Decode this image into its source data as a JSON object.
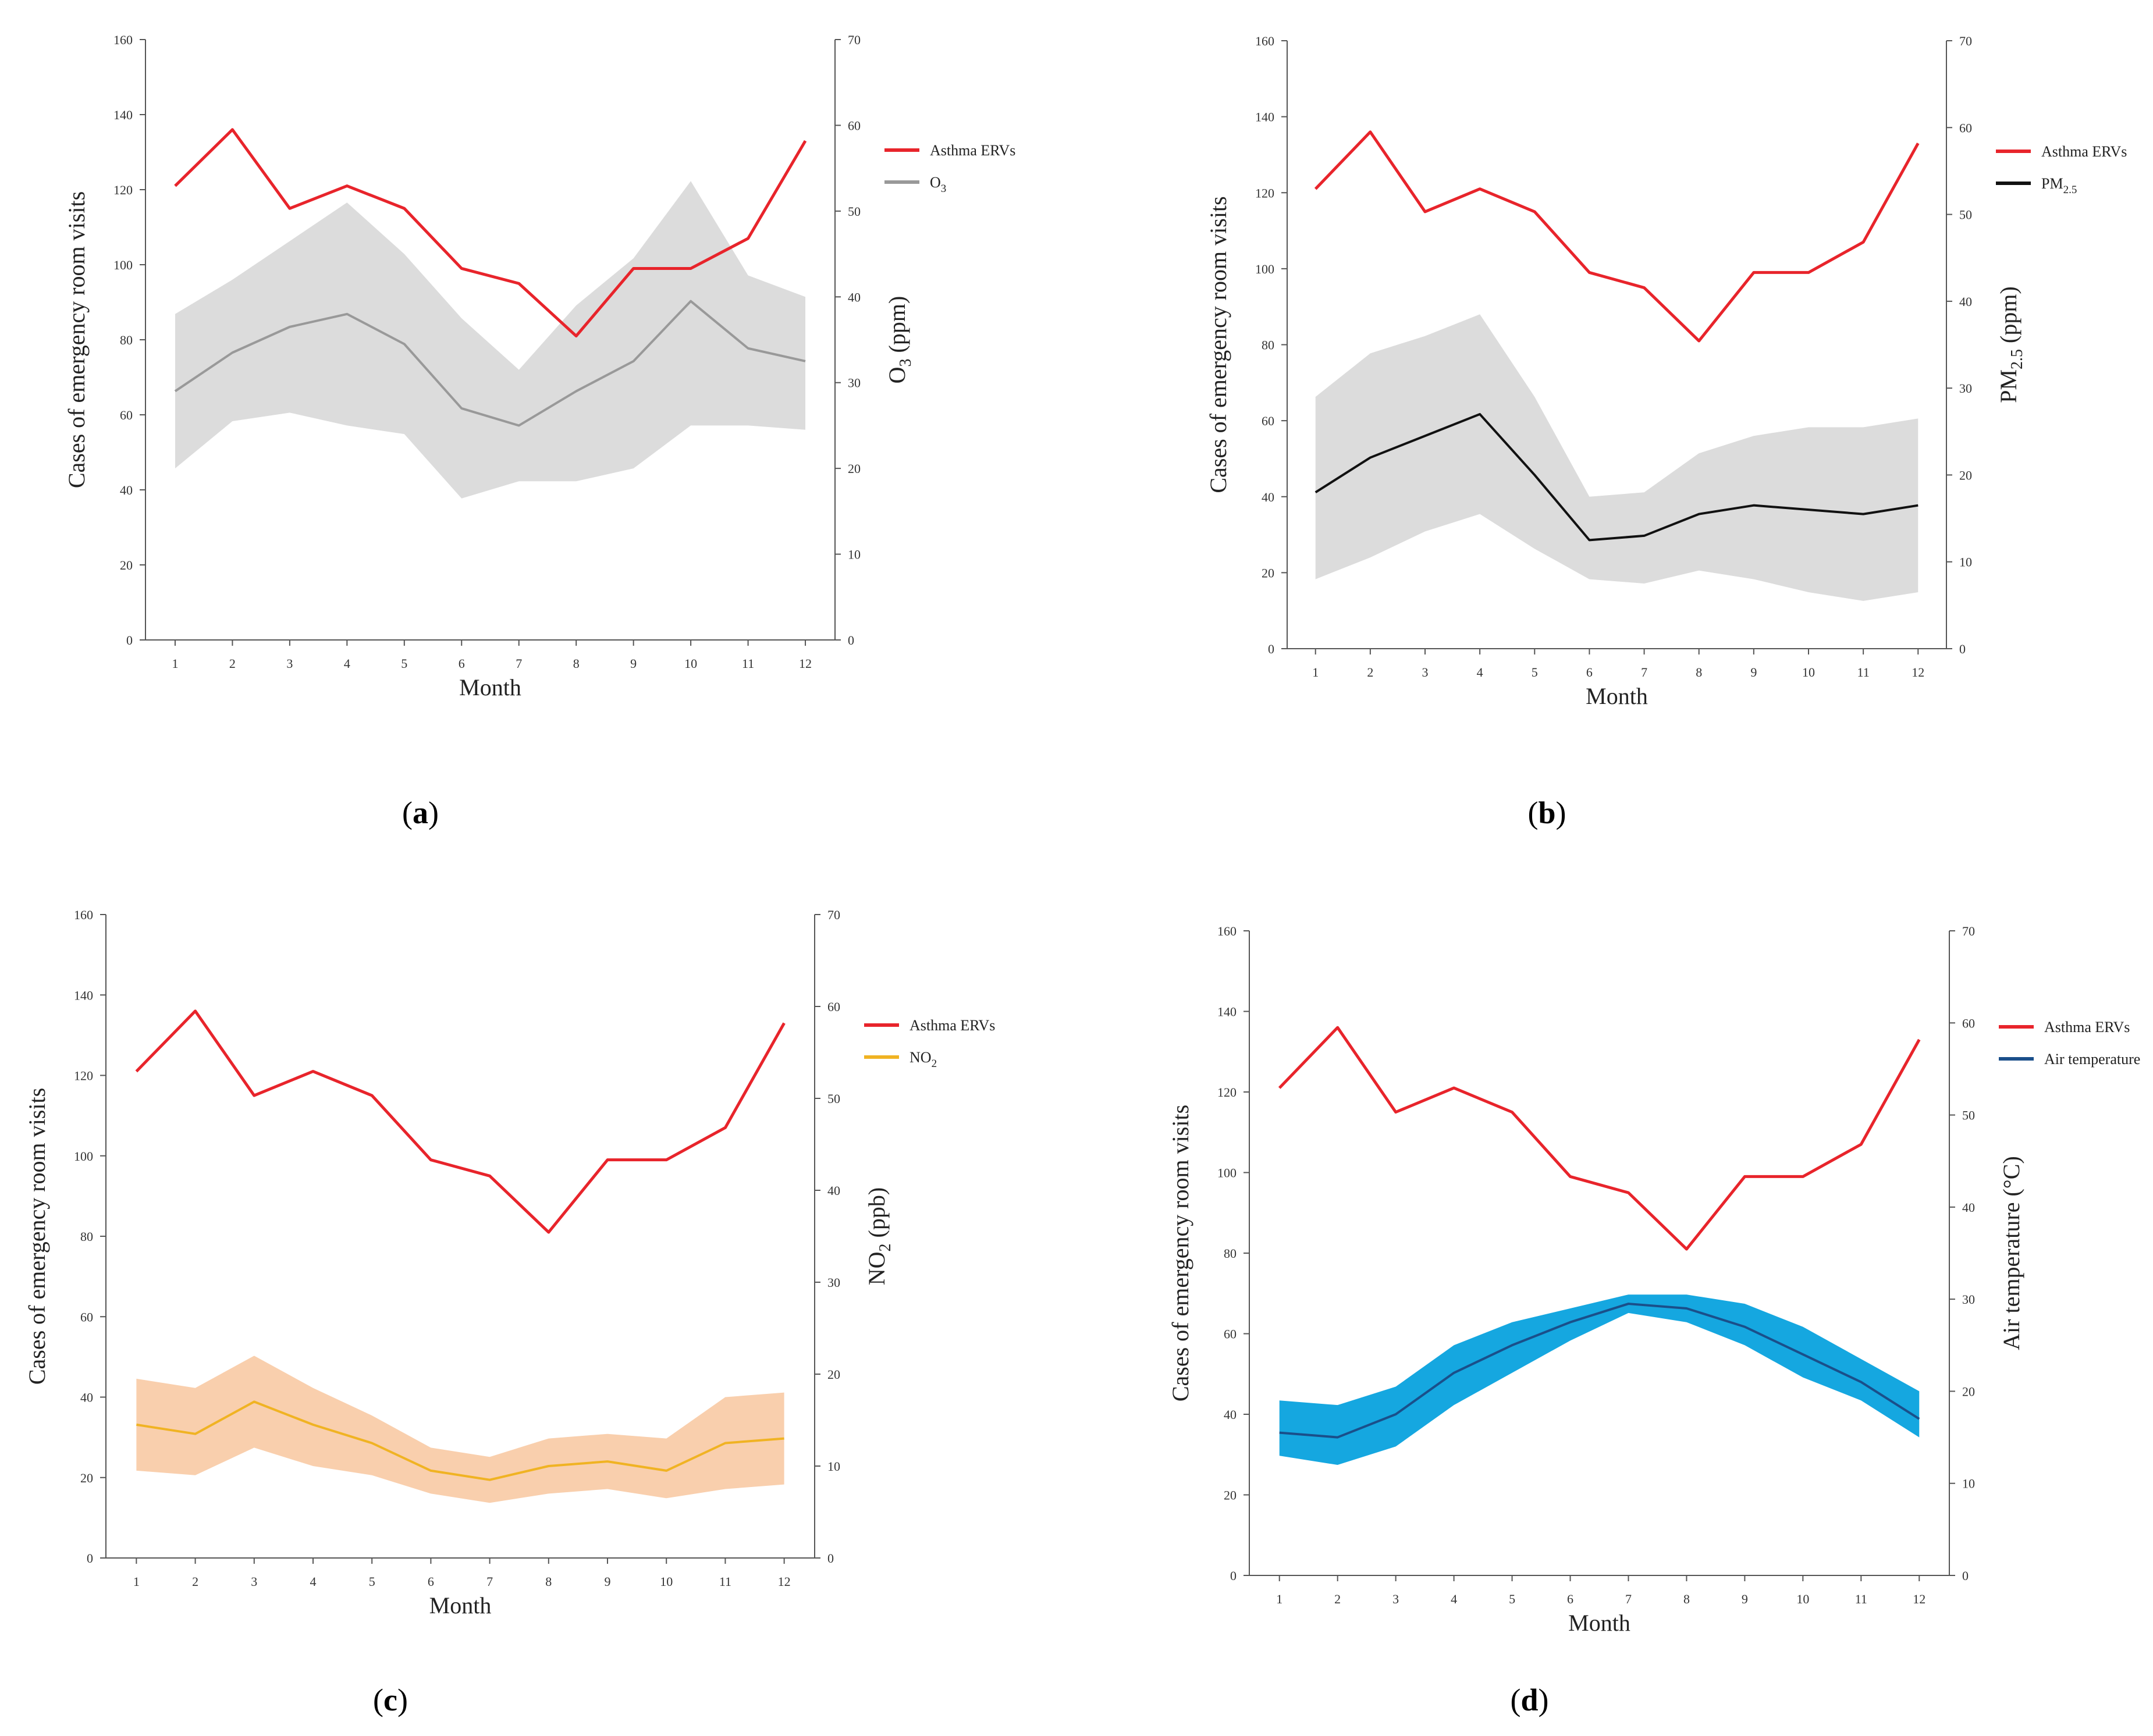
{
  "chart_data": [
    {
      "id": "a",
      "type": "line",
      "panel_label": "a",
      "x": [
        1,
        2,
        3,
        4,
        5,
        6,
        7,
        8,
        9,
        10,
        11,
        12
      ],
      "xlabel": "Month",
      "ylabel": "Cases of emergency room visits",
      "y2label": "O3 (ppm)",
      "y2label_parts": [
        "O",
        "3",
        " (ppm)"
      ],
      "ylim": [
        0,
        160
      ],
      "y2lim": [
        0,
        70
      ],
      "yticks": [
        0,
        20,
        40,
        60,
        80,
        100,
        120,
        140,
        160
      ],
      "y2ticks": [
        0,
        10,
        20,
        30,
        40,
        50,
        60,
        70
      ],
      "legend_position": "right-top",
      "series": [
        {
          "name": "Asthma ERVs",
          "legend_parts": [
            "Asthma ERVs"
          ],
          "axis": "left",
          "color": "#e8242b",
          "values": [
            121,
            136,
            115,
            121,
            115,
            99,
            95,
            81,
            99,
            99,
            107,
            133
          ]
        },
        {
          "name": "O3",
          "legend_parts": [
            "O",
            "3",
            ""
          ],
          "axis": "right",
          "color": "#999999",
          "values": [
            29,
            33.5,
            36.5,
            38,
            34.5,
            27,
            25,
            29,
            32.5,
            39.5,
            34,
            32.5
          ],
          "band_color": "#dcdcdc",
          "band_upper": [
            38,
            42,
            46.5,
            51,
            45,
            37.5,
            31.5,
            39,
            44.5,
            53.5,
            42.5,
            40
          ],
          "band_lower": [
            20,
            25.5,
            26.5,
            25,
            24,
            16.5,
            18.5,
            18.5,
            20,
            25,
            25,
            24.5
          ]
        }
      ]
    },
    {
      "id": "b",
      "type": "line",
      "panel_label": "b",
      "x": [
        1,
        2,
        3,
        4,
        5,
        6,
        7,
        8,
        9,
        10,
        11,
        12
      ],
      "xlabel": "Month",
      "ylabel": "Cases of emergency room visits",
      "y2label": "PM2.5 (ppm)",
      "y2label_parts": [
        "PM",
        "2.5",
        " (ppm)"
      ],
      "ylim": [
        0,
        160
      ],
      "y2lim": [
        0,
        70
      ],
      "yticks": [
        0,
        20,
        40,
        60,
        80,
        100,
        120,
        140,
        160
      ],
      "y2ticks": [
        0,
        10,
        20,
        30,
        40,
        50,
        60,
        70
      ],
      "legend_position": "right-top",
      "series": [
        {
          "name": "Asthma ERVs",
          "legend_parts": [
            "Asthma ERVs"
          ],
          "axis": "left",
          "color": "#e8242b",
          "values": [
            121,
            136,
            115,
            121,
            115,
            99,
            95,
            81,
            99,
            99,
            107,
            133
          ]
        },
        {
          "name": "PM2.5",
          "legend_parts": [
            "PM",
            "2.5",
            ""
          ],
          "axis": "right",
          "color": "#111111",
          "values": [
            18,
            22,
            24.5,
            27,
            20,
            12.5,
            13,
            15.5,
            16.5,
            16,
            15.5,
            16.5
          ],
          "band_color": "#dcdcdc",
          "band_upper": [
            29,
            34,
            36,
            38.5,
            29,
            17.5,
            18,
            22.5,
            24.5,
            25.5,
            25.5,
            26.5
          ],
          "band_lower": [
            8,
            10.5,
            13.5,
            15.5,
            11.5,
            8,
            7.5,
            9,
            8,
            6.5,
            5.5,
            6.5
          ]
        }
      ]
    },
    {
      "id": "c",
      "type": "line",
      "panel_label": "c",
      "x": [
        1,
        2,
        3,
        4,
        5,
        6,
        7,
        8,
        9,
        10,
        11,
        12
      ],
      "xlabel": "Month",
      "ylabel": "Cases of emergency room visits",
      "y2label": "NO2 (ppb)",
      "y2label_parts": [
        "NO",
        "2",
        " (ppb)"
      ],
      "ylim": [
        0,
        160
      ],
      "y2lim": [
        0,
        70
      ],
      "yticks": [
        0,
        20,
        40,
        60,
        80,
        100,
        120,
        140,
        160
      ],
      "y2ticks": [
        0,
        10,
        20,
        30,
        40,
        50,
        60,
        70
      ],
      "legend_position": "right-top",
      "series": [
        {
          "name": "Asthma ERVs",
          "legend_parts": [
            "Asthma ERVs"
          ],
          "axis": "left",
          "color": "#e8242b",
          "values": [
            121,
            136,
            115,
            121,
            115,
            99,
            95,
            81,
            99,
            99,
            107,
            133
          ]
        },
        {
          "name": "NO2",
          "legend_parts": [
            "NO",
            "2",
            ""
          ],
          "axis": "right",
          "color": "#f0b323",
          "values": [
            14.5,
            13.5,
            17,
            14.5,
            12.5,
            9.5,
            8.5,
            10,
            10.5,
            9.5,
            12.5,
            13
          ],
          "band_color": "#f9cfad",
          "band_upper": [
            19.5,
            18.5,
            22,
            18.5,
            15.5,
            12,
            11,
            13,
            13.5,
            13,
            17.5,
            18
          ],
          "band_lower": [
            9.5,
            9,
            12,
            10,
            9,
            7,
            6,
            7,
            7.5,
            6.5,
            7.5,
            8
          ]
        }
      ]
    },
    {
      "id": "d",
      "type": "line",
      "panel_label": "d",
      "x": [
        1,
        2,
        3,
        4,
        5,
        6,
        7,
        8,
        9,
        10,
        11,
        12
      ],
      "xlabel": "Month",
      "ylabel": "Cases of emergency room visits",
      "y2label": "Air temperature (°C)",
      "y2label_parts": [
        "Air temperature (°C)",
        "",
        ""
      ],
      "ylim": [
        0,
        160
      ],
      "y2lim": [
        0,
        70
      ],
      "yticks": [
        0,
        20,
        40,
        60,
        80,
        100,
        120,
        140,
        160
      ],
      "y2ticks": [
        0,
        10,
        20,
        30,
        40,
        50,
        60,
        70
      ],
      "legend_position": "right-top",
      "series": [
        {
          "name": "Asthma ERVs",
          "legend_parts": [
            "Asthma ERVs"
          ],
          "axis": "left",
          "color": "#e8242b",
          "values": [
            121,
            136,
            115,
            121,
            115,
            99,
            95,
            81,
            99,
            99,
            107,
            133
          ]
        },
        {
          "name": "Air temperature",
          "legend_parts": [
            "Air temperature",
            "",
            ""
          ],
          "axis": "right",
          "color": "#1a4f8a",
          "values": [
            15.5,
            15,
            17.5,
            22,
            25,
            27.5,
            29.5,
            29,
            27,
            24,
            21,
            17
          ],
          "band_color": "#15a7e0",
          "band_upper": [
            19,
            18.5,
            20.5,
            25,
            27.5,
            29,
            30.5,
            30.5,
            29.5,
            27,
            23.5,
            20
          ],
          "band_lower": [
            13,
            12,
            14,
            18.5,
            22,
            25.5,
            28.5,
            27.5,
            25,
            21.5,
            19,
            15
          ]
        }
      ]
    }
  ]
}
